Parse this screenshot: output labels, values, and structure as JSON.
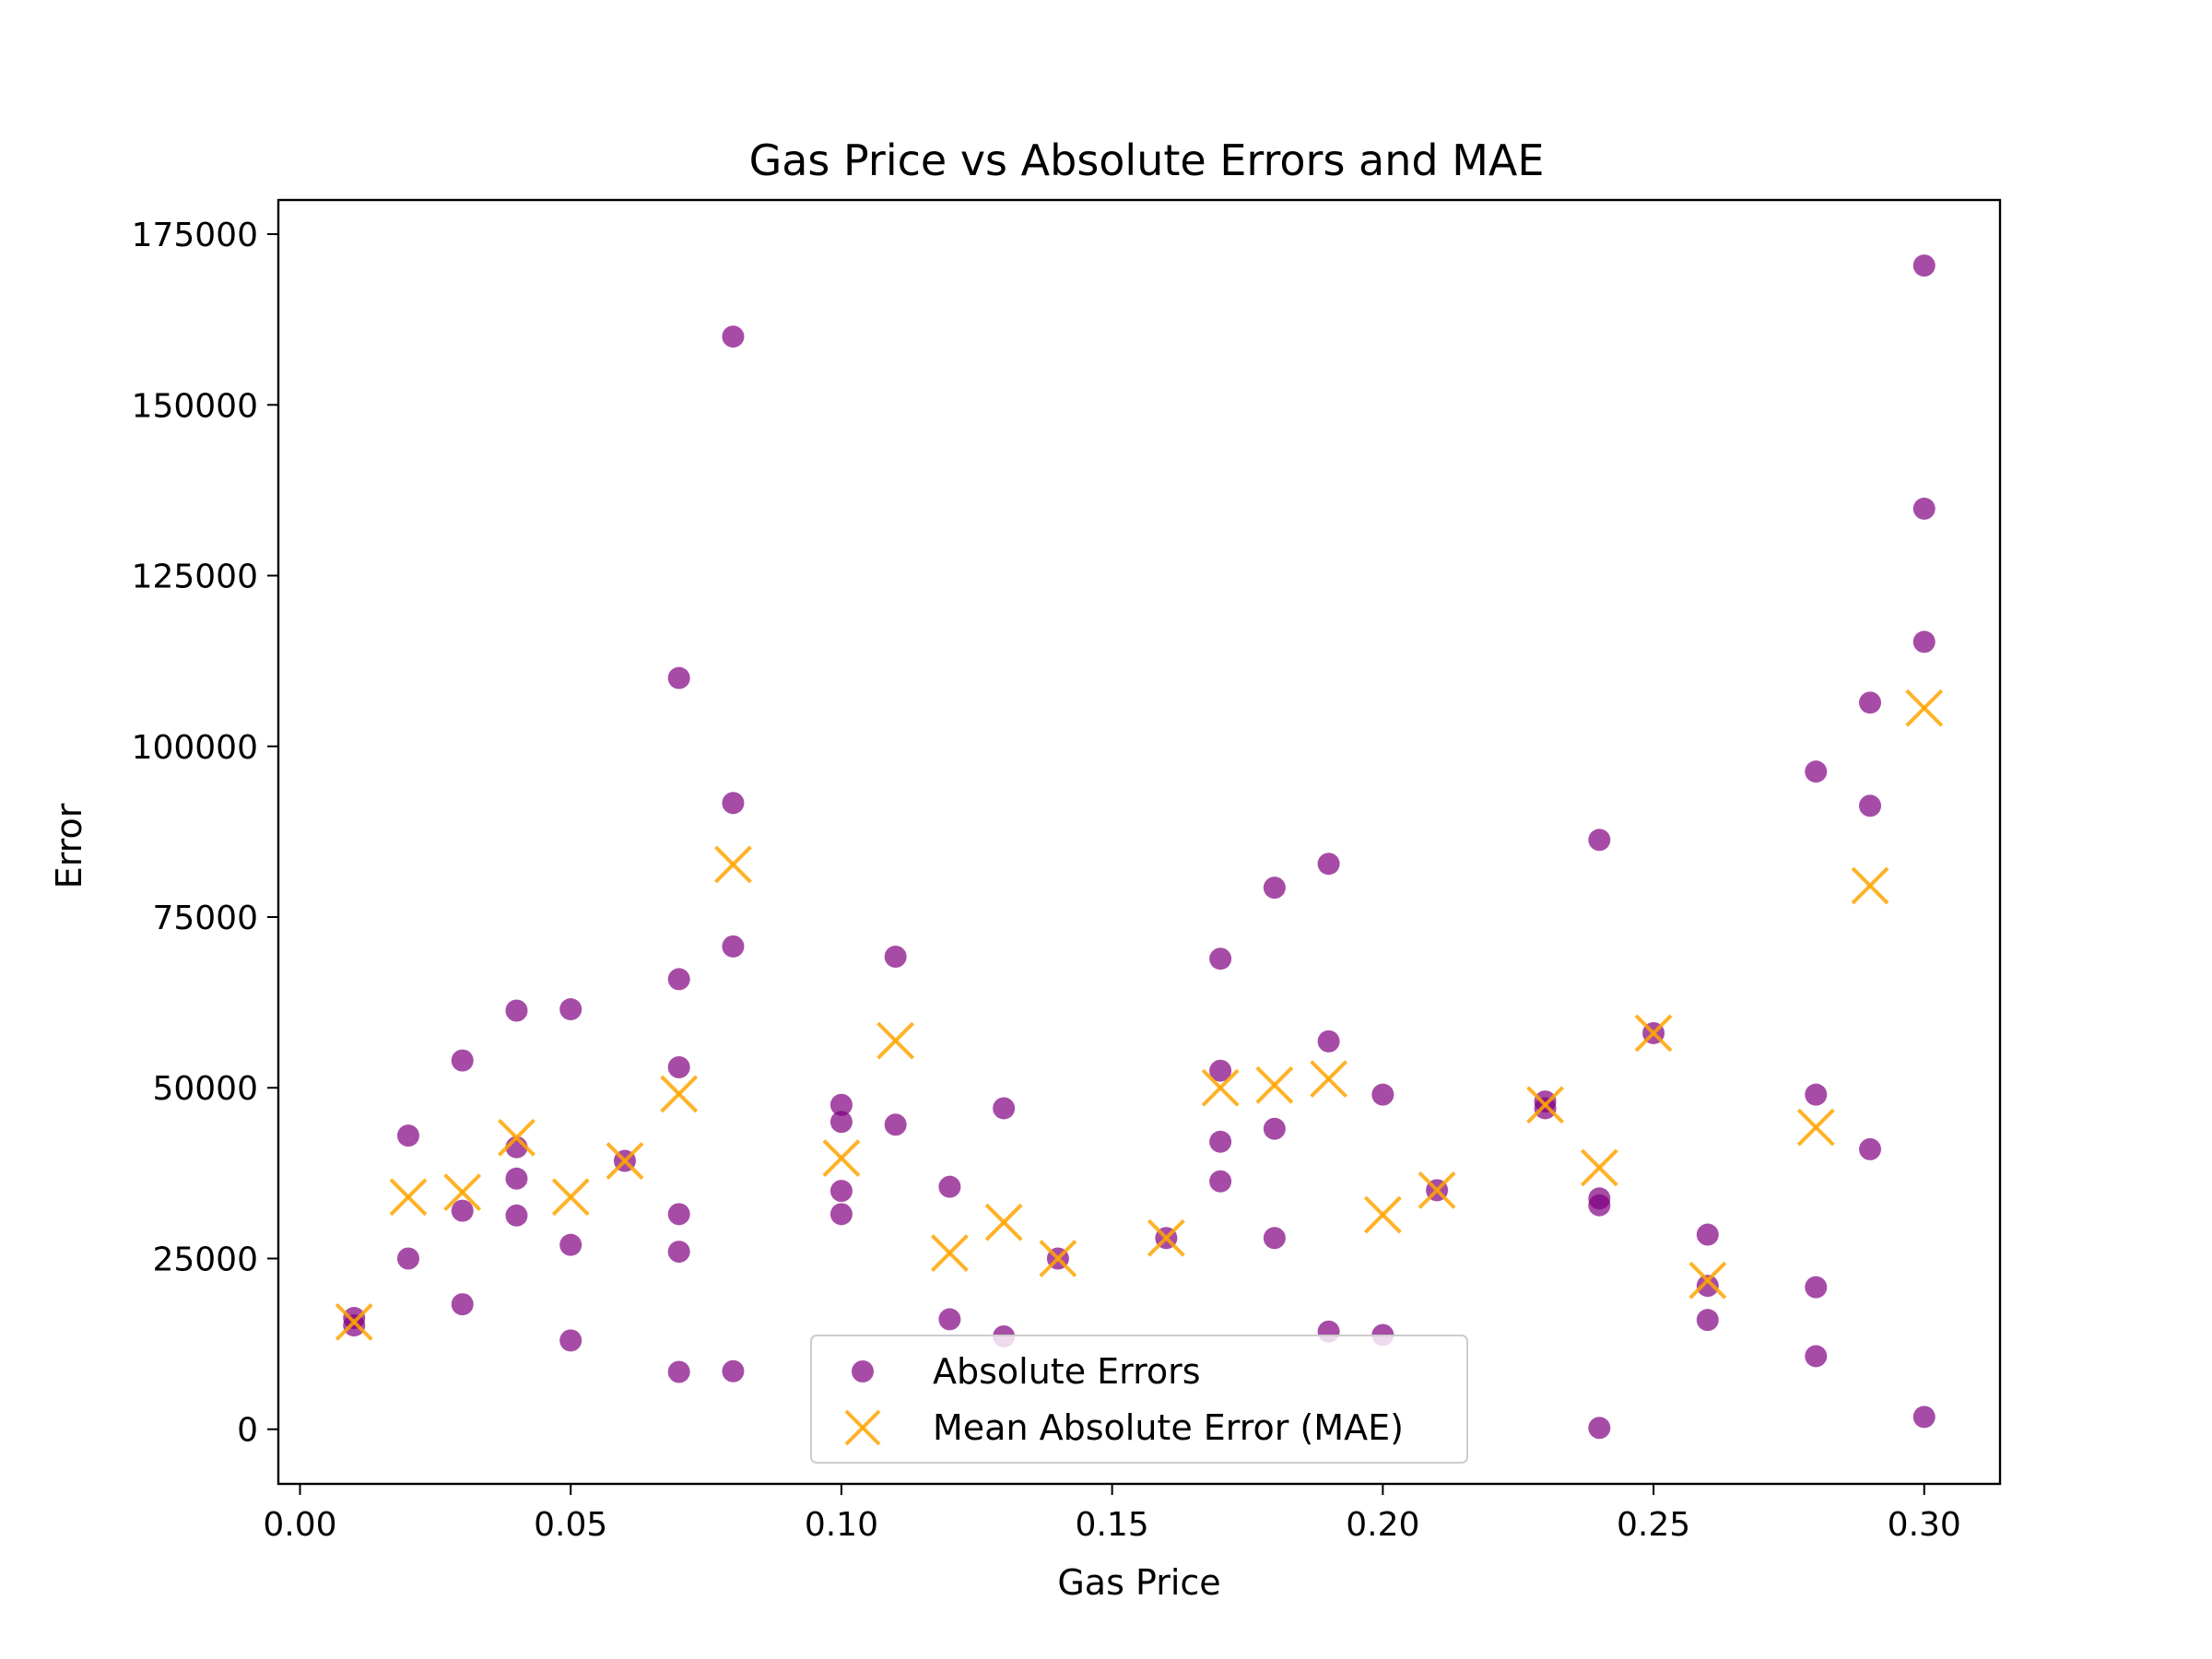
{
  "chart_data": {
    "type": "scatter",
    "title": "Gas Price vs Absolute Errors and MAE",
    "xlabel": "Gas Price",
    "ylabel": "Error",
    "xlim": [
      -0.004,
      0.314
    ],
    "ylim": [
      -8000,
      180000
    ],
    "xticks": [
      0.0,
      0.05,
      0.1,
      0.15,
      0.2,
      0.25,
      0.3
    ],
    "xtick_labels": [
      "0.00",
      "0.05",
      "0.10",
      "0.15",
      "0.20",
      "0.25",
      "0.30"
    ],
    "yticks": [
      0,
      25000,
      50000,
      75000,
      100000,
      125000,
      150000,
      175000
    ],
    "ytick_labels": [
      "0",
      "25000",
      "50000",
      "75000",
      "100000",
      "125000",
      "150000",
      "175000"
    ],
    "grid": false,
    "legend_position": "bottom-center",
    "series": [
      {
        "name": "Absolute Errors",
        "marker": "circle",
        "color": "#800080",
        "points": [
          [
            0.01,
            16300
          ],
          [
            0.01,
            15200
          ],
          [
            0.02,
            43000
          ],
          [
            0.02,
            25000
          ],
          [
            0.03,
            54000
          ],
          [
            0.03,
            32000
          ],
          [
            0.03,
            18300
          ],
          [
            0.04,
            61300
          ],
          [
            0.04,
            41300
          ],
          [
            0.04,
            36700
          ],
          [
            0.04,
            31300
          ],
          [
            0.05,
            61500
          ],
          [
            0.05,
            27000
          ],
          [
            0.05,
            13000
          ],
          [
            0.06,
            39300
          ],
          [
            0.07,
            110000
          ],
          [
            0.07,
            65900
          ],
          [
            0.07,
            53000
          ],
          [
            0.07,
            31500
          ],
          [
            0.07,
            26000
          ],
          [
            0.07,
            8400
          ],
          [
            0.08,
            160000
          ],
          [
            0.08,
            91700
          ],
          [
            0.08,
            70700
          ],
          [
            0.08,
            8500
          ],
          [
            0.1,
            47500
          ],
          [
            0.1,
            45000
          ],
          [
            0.1,
            34900
          ],
          [
            0.1,
            31500
          ],
          [
            0.11,
            69200
          ],
          [
            0.11,
            44600
          ],
          [
            0.12,
            35500
          ],
          [
            0.12,
            16100
          ],
          [
            0.13,
            47000
          ],
          [
            0.13,
            13600
          ],
          [
            0.14,
            25000
          ],
          [
            0.16,
            28000
          ],
          [
            0.17,
            68900
          ],
          [
            0.17,
            52500
          ],
          [
            0.17,
            42100
          ],
          [
            0.17,
            36300
          ],
          [
            0.18,
            79300
          ],
          [
            0.18,
            44000
          ],
          [
            0.18,
            28000
          ],
          [
            0.19,
            82800
          ],
          [
            0.19,
            56800
          ],
          [
            0.19,
            14300
          ],
          [
            0.2,
            49000
          ],
          [
            0.2,
            13800
          ],
          [
            0.21,
            35000
          ],
          [
            0.23,
            48000
          ],
          [
            0.23,
            47000
          ],
          [
            0.24,
            86300
          ],
          [
            0.24,
            33800
          ],
          [
            0.24,
            32800
          ],
          [
            0.24,
            200
          ],
          [
            0.25,
            58000
          ],
          [
            0.26,
            28500
          ],
          [
            0.26,
            21000
          ],
          [
            0.26,
            16000
          ],
          [
            0.28,
            96300
          ],
          [
            0.28,
            49000
          ],
          [
            0.28,
            20800
          ],
          [
            0.28,
            10700
          ],
          [
            0.29,
            106400
          ],
          [
            0.29,
            91300
          ],
          [
            0.29,
            41000
          ],
          [
            0.3,
            170400
          ],
          [
            0.3,
            134800
          ],
          [
            0.3,
            115300
          ],
          [
            0.3,
            1800
          ]
        ]
      },
      {
        "name": "Mean Absolute Error (MAE)",
        "marker": "x",
        "color": "#FFA500",
        "points": [
          [
            0.01,
            15700
          ],
          [
            0.02,
            34000
          ],
          [
            0.03,
            34700
          ],
          [
            0.04,
            42700
          ],
          [
            0.05,
            34000
          ],
          [
            0.06,
            39300
          ],
          [
            0.07,
            49100
          ],
          [
            0.08,
            82700
          ],
          [
            0.1,
            39700
          ],
          [
            0.11,
            56900
          ],
          [
            0.12,
            25800
          ],
          [
            0.13,
            30300
          ],
          [
            0.14,
            25000
          ],
          [
            0.16,
            28000
          ],
          [
            0.17,
            50000
          ],
          [
            0.18,
            50400
          ],
          [
            0.19,
            51300
          ],
          [
            0.2,
            31400
          ],
          [
            0.21,
            35000
          ],
          [
            0.23,
            47500
          ],
          [
            0.24,
            38300
          ],
          [
            0.25,
            58000
          ],
          [
            0.26,
            21800
          ],
          [
            0.28,
            44200
          ],
          [
            0.29,
            79600
          ],
          [
            0.3,
            105600
          ]
        ]
      }
    ]
  }
}
